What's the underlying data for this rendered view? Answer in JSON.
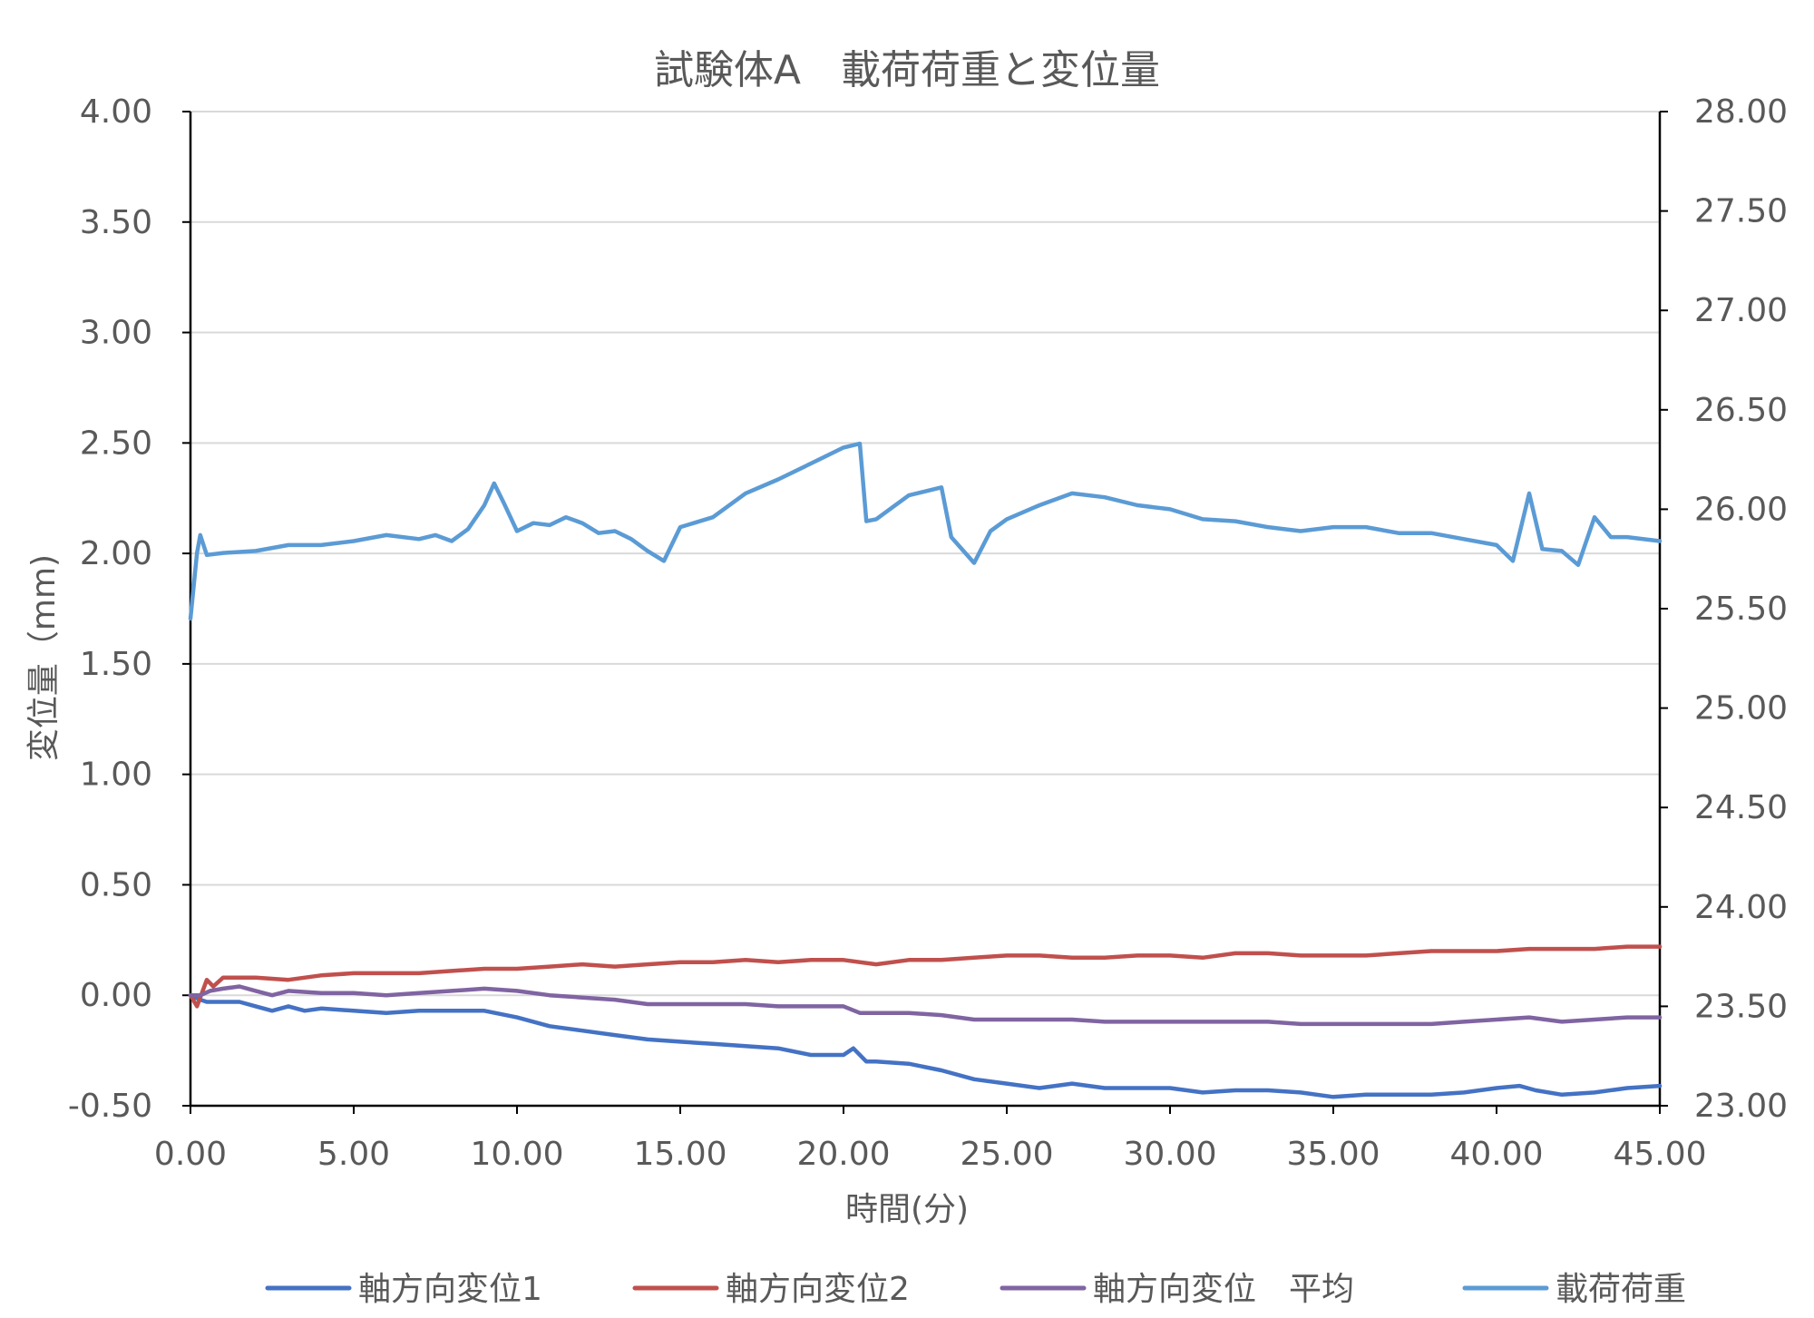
{
  "chart_data": {
    "type": "line",
    "title": "試験体A　載荷荷重と変位量",
    "xlabel": "時間(分)",
    "ylabel": "変位量（mm)",
    "y2label": "",
    "xlim": [
      0,
      45
    ],
    "ylim": [
      -0.5,
      4.0
    ],
    "y2lim": [
      23.0,
      28.0
    ],
    "xticks": [
      "0.00",
      "5.00",
      "10.00",
      "15.00",
      "20.00",
      "25.00",
      "30.00",
      "35.00",
      "40.00",
      "45.00"
    ],
    "yticks": [
      "-0.50",
      "0.00",
      "0.50",
      "1.00",
      "1.50",
      "2.00",
      "2.50",
      "3.00",
      "3.50",
      "4.00"
    ],
    "y2ticks": [
      "23.00",
      "23.50",
      "24.00",
      "24.50",
      "25.00",
      "25.50",
      "26.00",
      "26.50",
      "27.00",
      "27.50",
      "28.00"
    ],
    "grid": true,
    "legend_position": "bottom",
    "series": [
      {
        "name": "軸方向変位1",
        "axis": "left",
        "color": "#4472C4",
        "points": [
          [
            0,
            0
          ],
          [
            0.3,
            -0.02
          ],
          [
            0.5,
            -0.03
          ],
          [
            1.0,
            -0.03
          ],
          [
            1.5,
            -0.03
          ],
          [
            2.0,
            -0.05
          ],
          [
            2.5,
            -0.07
          ],
          [
            3.0,
            -0.05
          ],
          [
            3.5,
            -0.07
          ],
          [
            4.0,
            -0.06
          ],
          [
            5.0,
            -0.07
          ],
          [
            6.0,
            -0.08
          ],
          [
            7.0,
            -0.07
          ],
          [
            8.0,
            -0.07
          ],
          [
            9.0,
            -0.07
          ],
          [
            10.0,
            -0.1
          ],
          [
            11.0,
            -0.14
          ],
          [
            12.0,
            -0.16
          ],
          [
            13.0,
            -0.18
          ],
          [
            14.0,
            -0.2
          ],
          [
            15.0,
            -0.21
          ],
          [
            16.0,
            -0.22
          ],
          [
            17.0,
            -0.23
          ],
          [
            18.0,
            -0.24
          ],
          [
            19.0,
            -0.27
          ],
          [
            20.0,
            -0.27
          ],
          [
            20.3,
            -0.24
          ],
          [
            20.7,
            -0.3
          ],
          [
            21.0,
            -0.3
          ],
          [
            22.0,
            -0.31
          ],
          [
            23.0,
            -0.34
          ],
          [
            24.0,
            -0.38
          ],
          [
            25.0,
            -0.4
          ],
          [
            26.0,
            -0.42
          ],
          [
            27.0,
            -0.4
          ],
          [
            28.0,
            -0.42
          ],
          [
            29.0,
            -0.42
          ],
          [
            30.0,
            -0.42
          ],
          [
            31.0,
            -0.44
          ],
          [
            32.0,
            -0.43
          ],
          [
            33.0,
            -0.43
          ],
          [
            34.0,
            -0.44
          ],
          [
            35.0,
            -0.46
          ],
          [
            36.0,
            -0.45
          ],
          [
            37.0,
            -0.45
          ],
          [
            38.0,
            -0.45
          ],
          [
            39.0,
            -0.44
          ],
          [
            40.0,
            -0.42
          ],
          [
            40.7,
            -0.41
          ],
          [
            41.2,
            -0.43
          ],
          [
            42.0,
            -0.45
          ],
          [
            43.0,
            -0.44
          ],
          [
            44.0,
            -0.42
          ],
          [
            45.0,
            -0.41
          ]
        ]
      },
      {
        "name": "軸方向変位2",
        "axis": "left",
        "color": "#C0504D",
        "points": [
          [
            0,
            0
          ],
          [
            0.2,
            -0.05
          ],
          [
            0.5,
            0.07
          ],
          [
            0.7,
            0.04
          ],
          [
            1.0,
            0.08
          ],
          [
            2.0,
            0.08
          ],
          [
            3.0,
            0.07
          ],
          [
            4.0,
            0.09
          ],
          [
            5.0,
            0.1
          ],
          [
            6.0,
            0.1
          ],
          [
            7.0,
            0.1
          ],
          [
            8.0,
            0.11
          ],
          [
            9.0,
            0.12
          ],
          [
            10.0,
            0.12
          ],
          [
            11.0,
            0.13
          ],
          [
            12.0,
            0.14
          ],
          [
            13.0,
            0.13
          ],
          [
            14.0,
            0.14
          ],
          [
            15.0,
            0.15
          ],
          [
            16.0,
            0.15
          ],
          [
            17.0,
            0.16
          ],
          [
            18.0,
            0.15
          ],
          [
            19.0,
            0.16
          ],
          [
            20.0,
            0.16
          ],
          [
            21.0,
            0.14
          ],
          [
            22.0,
            0.16
          ],
          [
            23.0,
            0.16
          ],
          [
            24.0,
            0.17
          ],
          [
            25.0,
            0.18
          ],
          [
            26.0,
            0.18
          ],
          [
            27.0,
            0.17
          ],
          [
            28.0,
            0.17
          ],
          [
            29.0,
            0.18
          ],
          [
            30.0,
            0.18
          ],
          [
            31.0,
            0.17
          ],
          [
            32.0,
            0.19
          ],
          [
            33.0,
            0.19
          ],
          [
            34.0,
            0.18
          ],
          [
            35.0,
            0.18
          ],
          [
            36.0,
            0.18
          ],
          [
            37.0,
            0.19
          ],
          [
            38.0,
            0.2
          ],
          [
            39.0,
            0.2
          ],
          [
            40.0,
            0.2
          ],
          [
            41.0,
            0.21
          ],
          [
            42.0,
            0.21
          ],
          [
            43.0,
            0.21
          ],
          [
            44.0,
            0.22
          ],
          [
            45.0,
            0.22
          ]
        ]
      },
      {
        "name": "軸方向変位　平均",
        "axis": "left",
        "color": "#8064A2",
        "points": [
          [
            0,
            0
          ],
          [
            0.3,
            0.0
          ],
          [
            0.6,
            0.02
          ],
          [
            1.0,
            0.03
          ],
          [
            1.5,
            0.04
          ],
          [
            2.0,
            0.02
          ],
          [
            2.5,
            0.0
          ],
          [
            3.0,
            0.02
          ],
          [
            4.0,
            0.01
          ],
          [
            5.0,
            0.01
          ],
          [
            6.0,
            0.0
          ],
          [
            7.0,
            0.01
          ],
          [
            8.0,
            0.02
          ],
          [
            9.0,
            0.03
          ],
          [
            10.0,
            0.02
          ],
          [
            11.0,
            0.0
          ],
          [
            12.0,
            -0.01
          ],
          [
            13.0,
            -0.02
          ],
          [
            14.0,
            -0.04
          ],
          [
            15.0,
            -0.04
          ],
          [
            16.0,
            -0.04
          ],
          [
            17.0,
            -0.04
          ],
          [
            18.0,
            -0.05
          ],
          [
            19.0,
            -0.05
          ],
          [
            20.0,
            -0.05
          ],
          [
            20.5,
            -0.08
          ],
          [
            21.0,
            -0.08
          ],
          [
            22.0,
            -0.08
          ],
          [
            23.0,
            -0.09
          ],
          [
            24.0,
            -0.11
          ],
          [
            25.0,
            -0.11
          ],
          [
            26.0,
            -0.11
          ],
          [
            27.0,
            -0.11
          ],
          [
            28.0,
            -0.12
          ],
          [
            29.0,
            -0.12
          ],
          [
            30.0,
            -0.12
          ],
          [
            31.0,
            -0.12
          ],
          [
            32.0,
            -0.12
          ],
          [
            33.0,
            -0.12
          ],
          [
            34.0,
            -0.13
          ],
          [
            35.0,
            -0.13
          ],
          [
            36.0,
            -0.13
          ],
          [
            37.0,
            -0.13
          ],
          [
            38.0,
            -0.13
          ],
          [
            39.0,
            -0.12
          ],
          [
            40.0,
            -0.11
          ],
          [
            41.0,
            -0.1
          ],
          [
            42.0,
            -0.12
          ],
          [
            43.0,
            -0.11
          ],
          [
            44.0,
            -0.1
          ],
          [
            45.0,
            -0.1
          ]
        ]
      },
      {
        "name": "載荷荷重",
        "axis": "right",
        "color": "#5B9BD5",
        "points": [
          [
            0,
            25.45
          ],
          [
            0.2,
            25.78
          ],
          [
            0.3,
            25.87
          ],
          [
            0.5,
            25.77
          ],
          [
            1.0,
            25.78
          ],
          [
            2.0,
            25.79
          ],
          [
            3.0,
            25.82
          ],
          [
            4.0,
            25.82
          ],
          [
            5.0,
            25.84
          ],
          [
            6.0,
            25.87
          ],
          [
            7.0,
            25.85
          ],
          [
            7.5,
            25.87
          ],
          [
            8.0,
            25.84
          ],
          [
            8.5,
            25.9
          ],
          [
            9.0,
            26.02
          ],
          [
            9.3,
            26.13
          ],
          [
            9.6,
            26.03
          ],
          [
            10.0,
            25.89
          ],
          [
            10.5,
            25.93
          ],
          [
            11.0,
            25.92
          ],
          [
            11.5,
            25.96
          ],
          [
            12.0,
            25.93
          ],
          [
            12.5,
            25.88
          ],
          [
            13.0,
            25.89
          ],
          [
            13.5,
            25.85
          ],
          [
            14.0,
            25.79
          ],
          [
            14.5,
            25.74
          ],
          [
            15.0,
            25.91
          ],
          [
            16.0,
            25.96
          ],
          [
            17.0,
            26.08
          ],
          [
            18.0,
            26.15
          ],
          [
            19.0,
            26.23
          ],
          [
            20.0,
            26.31
          ],
          [
            20.5,
            26.33
          ],
          [
            20.7,
            25.94
          ],
          [
            21.0,
            25.95
          ],
          [
            22.0,
            26.07
          ],
          [
            23.0,
            26.11
          ],
          [
            23.3,
            25.86
          ],
          [
            24.0,
            25.73
          ],
          [
            24.5,
            25.89
          ],
          [
            25.0,
            25.95
          ],
          [
            26.0,
            26.02
          ],
          [
            27.0,
            26.08
          ],
          [
            28.0,
            26.06
          ],
          [
            29.0,
            26.02
          ],
          [
            30.0,
            26.0
          ],
          [
            31.0,
            25.95
          ],
          [
            32.0,
            25.94
          ],
          [
            33.0,
            25.91
          ],
          [
            34.0,
            25.89
          ],
          [
            35.0,
            25.91
          ],
          [
            36.0,
            25.91
          ],
          [
            37.0,
            25.88
          ],
          [
            38.0,
            25.88
          ],
          [
            39.0,
            25.85
          ],
          [
            40.0,
            25.82
          ],
          [
            40.5,
            25.74
          ],
          [
            41.0,
            26.08
          ],
          [
            41.4,
            25.8
          ],
          [
            42.0,
            25.79
          ],
          [
            42.5,
            25.72
          ],
          [
            43.0,
            25.96
          ],
          [
            43.5,
            25.86
          ],
          [
            44.0,
            25.86
          ],
          [
            45.0,
            25.84
          ]
        ]
      }
    ]
  }
}
